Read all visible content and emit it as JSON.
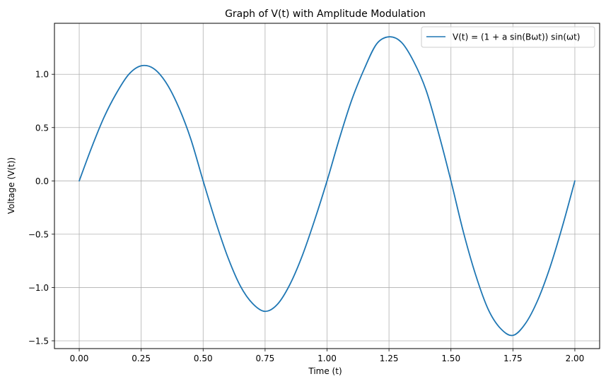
{
  "chart_data": {
    "type": "line",
    "title": "Graph of V(t) with Amplitude Modulation",
    "xlabel": "Time (t)",
    "ylabel": "Voltage (V(t))",
    "xlim": [
      -0.1,
      2.1
    ],
    "ylim": [
      -1.573,
      1.478
    ],
    "xticks": [
      0.0,
      0.25,
      0.5,
      0.75,
      1.0,
      1.25,
      1.5,
      1.75,
      2.0
    ],
    "xtick_labels": [
      "0.00",
      "0.25",
      "0.50",
      "0.75",
      "1.00",
      "1.25",
      "1.50",
      "1.75",
      "2.00"
    ],
    "yticks": [
      -1.5,
      -1.0,
      -0.5,
      0.0,
      0.5,
      1.0
    ],
    "ytick_labels": [
      "−1.5",
      "−1.0",
      "−0.5",
      "0.0",
      "0.5",
      "1.0"
    ],
    "grid": true,
    "legend_position": "top-right",
    "series": [
      {
        "name": "V(t) = (1 + a sin(Bωt)) sin(ωt)",
        "color": "#1f77b4",
        "x": [
          0.0,
          0.05,
          0.1,
          0.15,
          0.2,
          0.25,
          0.3,
          0.35,
          0.4,
          0.45,
          0.5,
          0.55,
          0.6,
          0.65,
          0.7,
          0.75,
          0.8,
          0.85,
          0.9,
          0.95,
          1.0,
          1.05,
          1.1,
          1.15,
          1.2,
          1.25,
          1.3,
          1.35,
          1.4,
          1.45,
          1.5,
          1.55,
          1.6,
          1.65,
          1.7,
          1.75,
          1.8,
          1.85,
          1.9,
          1.95,
          2.0
        ],
        "y": [
          0.0,
          0.313,
          0.596,
          0.822,
          0.999,
          1.079,
          1.054,
          0.923,
          0.698,
          0.394,
          0.0,
          -0.379,
          -0.718,
          -0.985,
          -1.151,
          -1.224,
          -1.157,
          -0.972,
          -0.702,
          -0.367,
          0.0,
          0.398,
          0.761,
          1.049,
          1.284,
          1.351,
          1.3,
          1.118,
          0.848,
          0.448,
          0.0,
          -0.478,
          -0.884,
          -1.203,
          -1.384,
          -1.449,
          -1.34,
          -1.12,
          -0.809,
          -0.425,
          0.0
        ]
      }
    ]
  }
}
